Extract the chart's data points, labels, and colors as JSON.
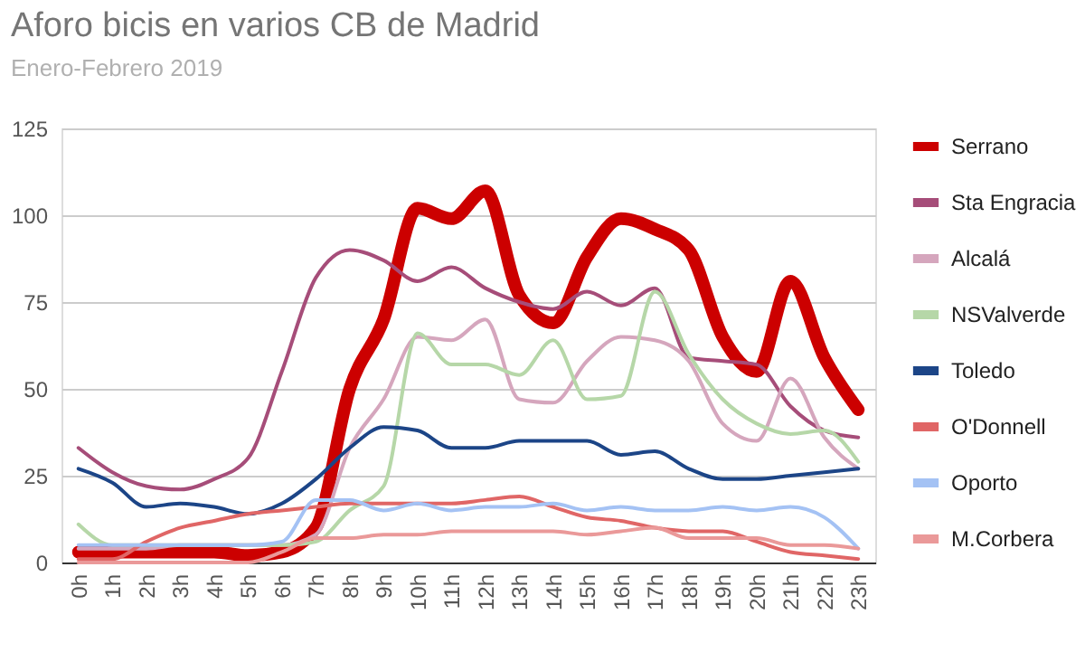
{
  "chart_data": {
    "type": "line",
    "title": "Aforo bicis en varios CB de Madrid",
    "subtitle": "Enero-Febrero 2019",
    "categories": [
      "0h",
      "1h",
      "2h",
      "3h",
      "4h",
      "5h",
      "6h",
      "7h",
      "8h",
      "9h",
      "10h",
      "11h",
      "12h",
      "13h",
      "14h",
      "15h",
      "16h",
      "17h",
      "18h",
      "19h",
      "20h",
      "21h",
      "22h",
      "23h"
    ],
    "series": [
      {
        "name": "Serrano",
        "color": "#cc0000",
        "values": [
          3,
          3,
          3,
          3,
          3,
          2,
          3,
          10,
          50,
          70,
          102,
          99,
          107,
          77,
          69,
          88,
          99,
          96,
          90,
          65,
          55,
          81,
          59,
          44
        ]
      },
      {
        "name": "Sta Engracia",
        "color": "#a64d79",
        "values": [
          33,
          26,
          22,
          21,
          24,
          30,
          55,
          82,
          90,
          87,
          81,
          85,
          79,
          75,
          73,
          78,
          74,
          79,
          59,
          58,
          57,
          45,
          38,
          36
        ]
      },
      {
        "name": "Alcalá",
        "color": "#d5a6bd",
        "values": [
          4,
          4,
          4,
          5,
          5,
          5,
          5,
          8,
          33,
          47,
          65,
          64,
          70,
          47,
          46,
          58,
          65,
          64,
          58,
          40,
          35,
          53,
          36,
          27
        ]
      },
      {
        "name": "NSValverde",
        "color": "#b6d7a8",
        "values": [
          11,
          5,
          5,
          5,
          5,
          5,
          5,
          6,
          15,
          22,
          66,
          57,
          57,
          54,
          64,
          47,
          48,
          78,
          60,
          47,
          40,
          37,
          38,
          29
        ]
      },
      {
        "name": "Toledo",
        "color": "#1c4587",
        "values": [
          27,
          23,
          16,
          17,
          16,
          14,
          17,
          24,
          33,
          39,
          38,
          33,
          33,
          35,
          35,
          35,
          31,
          32,
          27,
          24,
          24,
          25,
          26,
          27
        ]
      },
      {
        "name": "O'Donnell",
        "color": "#e06666",
        "values": [
          1,
          1,
          6,
          10,
          12,
          14,
          15,
          16,
          17,
          17,
          17,
          17,
          18,
          19,
          16,
          13,
          12,
          10,
          9,
          9,
          6,
          3,
          2,
          1
        ]
      },
      {
        "name": "Oporto",
        "color": "#a4c2f4",
        "values": [
          5,
          5,
          5,
          5,
          5,
          5,
          6,
          18,
          18,
          15,
          17,
          15,
          16,
          16,
          17,
          15,
          16,
          15,
          15,
          16,
          15,
          16,
          13,
          4
        ]
      },
      {
        "name": "M.Corbera",
        "color": "#ea9999",
        "values": [
          0,
          0,
          0,
          0,
          0,
          0,
          3,
          7,
          7,
          8,
          8,
          9,
          9,
          9,
          9,
          8,
          9,
          10,
          7,
          7,
          7,
          5,
          5,
          4
        ]
      }
    ],
    "ylim": [
      0,
      125
    ],
    "yticks": [
      0,
      25,
      50,
      75,
      100,
      125
    ],
    "grid": "y",
    "legend": "right",
    "marker": "none",
    "line_style": "solid"
  }
}
